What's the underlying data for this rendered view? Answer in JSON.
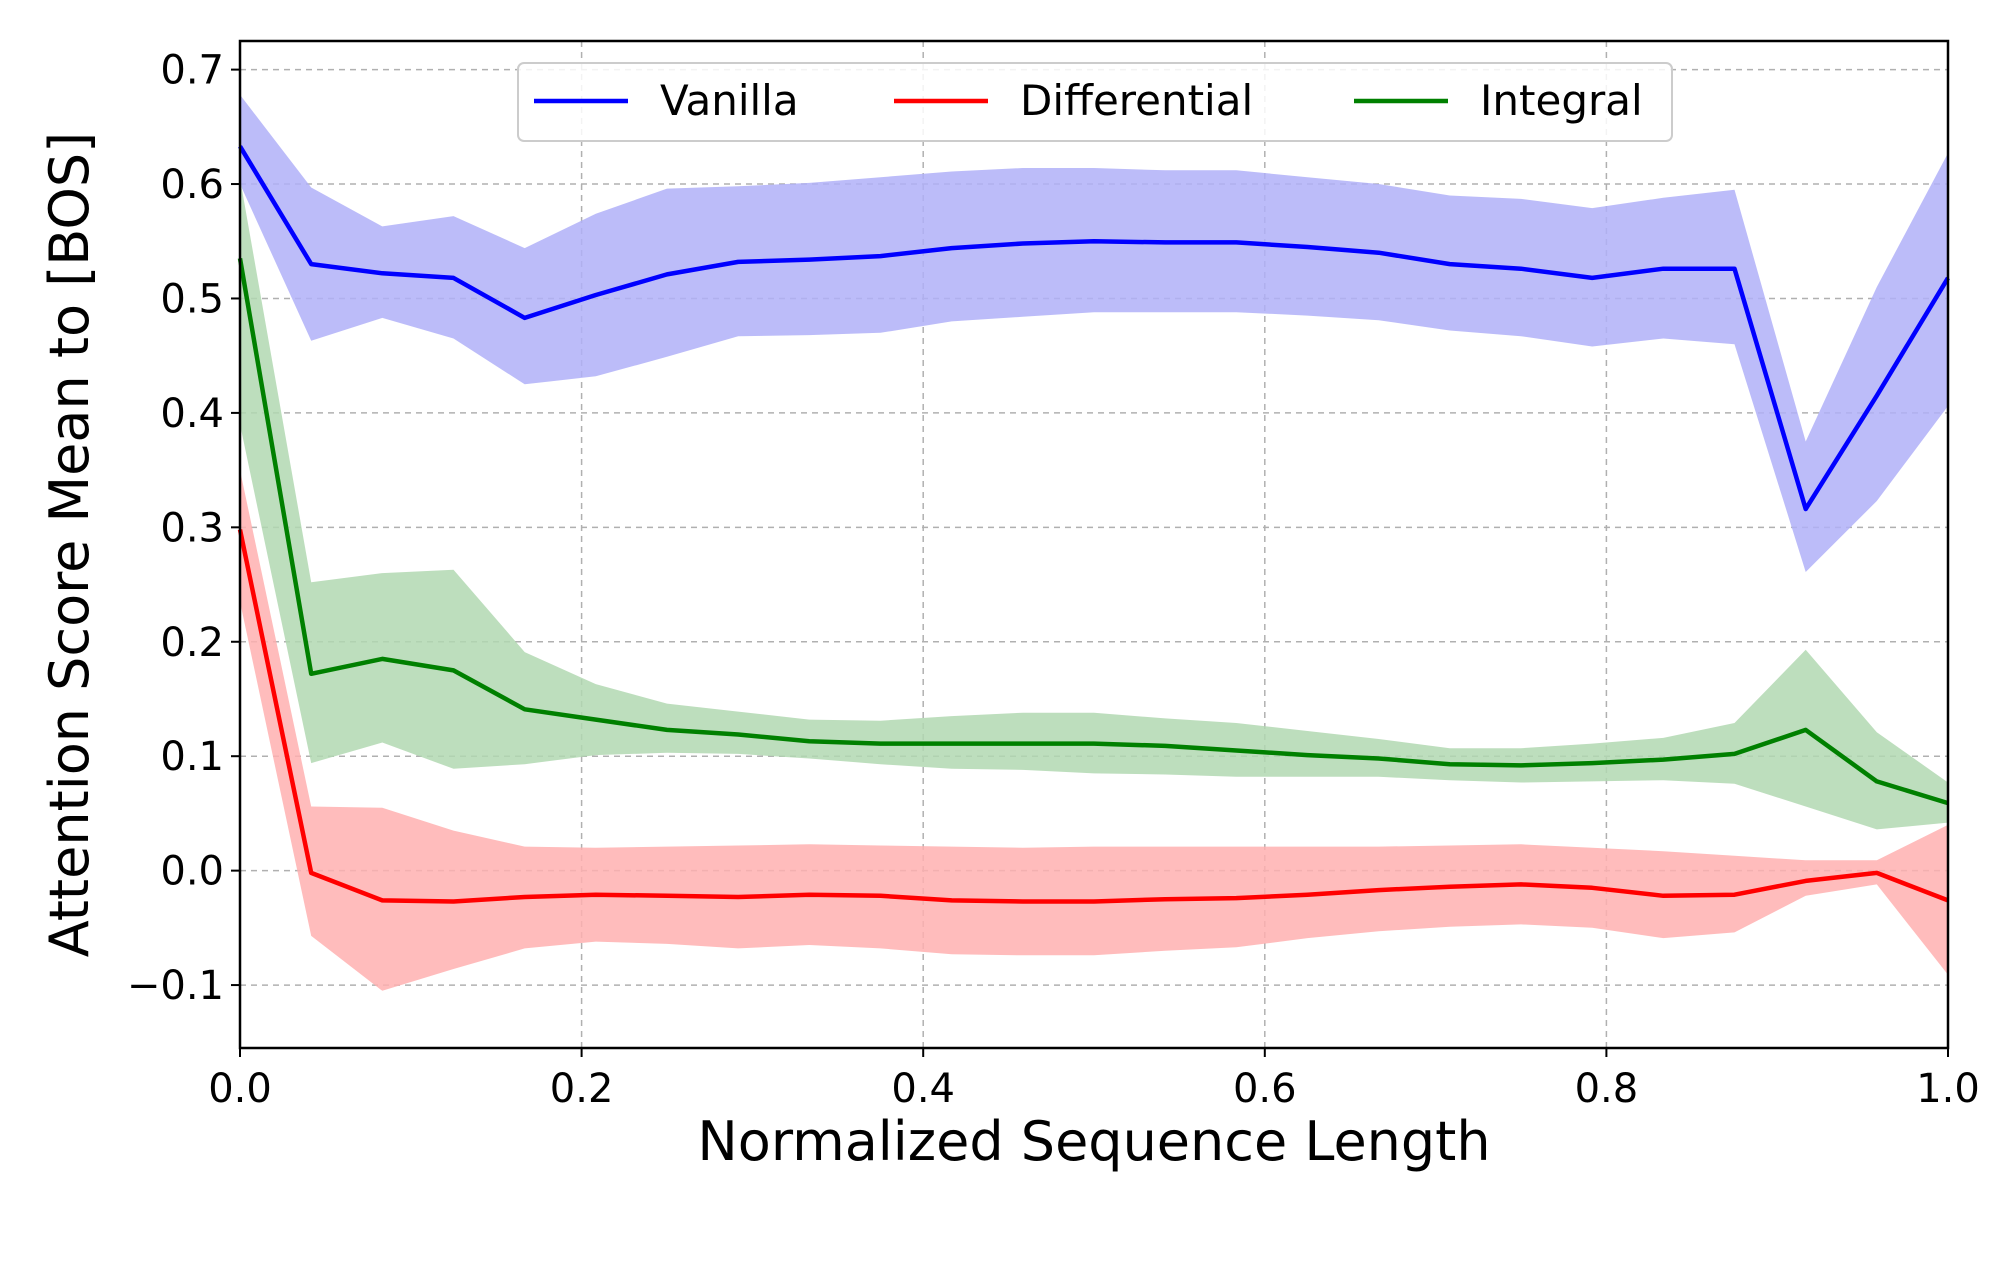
{
  "chart_data": {
    "type": "line",
    "xlabel": "Normalized Sequence Length",
    "ylabel": "Attention Score Mean to [BOS]",
    "xlim": [
      0,
      1
    ],
    "ylim": [
      -0.155,
      0.725
    ],
    "x_ticks": [
      0.0,
      0.2,
      0.4,
      0.6,
      0.8,
      1.0
    ],
    "x_tick_labels": [
      "0.0",
      "0.2",
      "0.4",
      "0.6",
      "0.8",
      "1.0"
    ],
    "y_ticks": [
      -0.1,
      0.0,
      0.1,
      0.2,
      0.3,
      0.4,
      0.5,
      0.6,
      0.7
    ],
    "y_tick_labels": [
      "−0.1",
      "0.0",
      "0.1",
      "0.2",
      "0.3",
      "0.4",
      "0.5",
      "0.6",
      "0.7"
    ],
    "grid": true,
    "legend_position": "top-center",
    "x": [
      0.0,
      0.0417,
      0.0833,
      0.125,
      0.1667,
      0.2083,
      0.25,
      0.2917,
      0.3333,
      0.375,
      0.4167,
      0.4583,
      0.5,
      0.5417,
      0.5833,
      0.625,
      0.6667,
      0.7083,
      0.75,
      0.7917,
      0.8333,
      0.875,
      0.9167,
      0.9583,
      1.0
    ],
    "series": [
      {
        "name": "Vanilla",
        "color": "#0000ff",
        "band_color": "#b0b0f8",
        "values": [
          0.633,
          0.53,
          0.522,
          0.518,
          0.483,
          0.503,
          0.521,
          0.532,
          0.534,
          0.537,
          0.544,
          0.548,
          0.55,
          0.549,
          0.549,
          0.545,
          0.54,
          0.53,
          0.526,
          0.518,
          0.526,
          0.526,
          0.316,
          0.415,
          0.518
        ],
        "upper": [
          0.678,
          0.597,
          0.563,
          0.572,
          0.544,
          0.574,
          0.596,
          0.598,
          0.601,
          0.606,
          0.611,
          0.614,
          0.614,
          0.612,
          0.612,
          0.606,
          0.6,
          0.59,
          0.587,
          0.579,
          0.588,
          0.595,
          0.375,
          0.51,
          0.627
        ],
        "lower": [
          0.6,
          0.463,
          0.483,
          0.465,
          0.425,
          0.432,
          0.449,
          0.467,
          0.468,
          0.47,
          0.48,
          0.484,
          0.488,
          0.488,
          0.488,
          0.485,
          0.481,
          0.472,
          0.467,
          0.458,
          0.465,
          0.46,
          0.261,
          0.323,
          0.406
        ]
      },
      {
        "name": "Differential",
        "color": "#ff0000",
        "band_color": "#ffb0b0",
        "values": [
          0.298,
          -0.002,
          -0.026,
          -0.027,
          -0.023,
          -0.021,
          -0.022,
          -0.023,
          -0.021,
          -0.022,
          -0.026,
          -0.027,
          -0.027,
          -0.025,
          -0.024,
          -0.021,
          -0.017,
          -0.014,
          -0.012,
          -0.015,
          -0.022,
          -0.021,
          -0.009,
          -0.002,
          -0.026
        ],
        "upper": [
          0.35,
          0.056,
          0.055,
          0.035,
          0.021,
          0.02,
          0.021,
          0.022,
          0.023,
          0.022,
          0.021,
          0.02,
          0.021,
          0.021,
          0.021,
          0.021,
          0.021,
          0.022,
          0.023,
          0.02,
          0.017,
          0.013,
          0.009,
          0.009,
          0.04
        ],
        "lower": [
          0.235,
          -0.057,
          -0.105,
          -0.086,
          -0.068,
          -0.062,
          -0.064,
          -0.068,
          -0.065,
          -0.068,
          -0.073,
          -0.074,
          -0.074,
          -0.07,
          -0.067,
          -0.059,
          -0.053,
          -0.049,
          -0.047,
          -0.05,
          -0.059,
          -0.054,
          -0.022,
          -0.012,
          -0.091
        ]
      },
      {
        "name": "Integral",
        "color": "#008000",
        "band_color": "#b2d8b2",
        "values": [
          0.535,
          0.172,
          0.185,
          0.175,
          0.141,
          0.132,
          0.123,
          0.119,
          0.113,
          0.111,
          0.111,
          0.111,
          0.111,
          0.109,
          0.105,
          0.101,
          0.098,
          0.093,
          0.092,
          0.094,
          0.097,
          0.102,
          0.123,
          0.078,
          0.059
        ],
        "upper": [
          0.605,
          0.252,
          0.26,
          0.263,
          0.191,
          0.163,
          0.146,
          0.139,
          0.132,
          0.131,
          0.135,
          0.138,
          0.138,
          0.133,
          0.129,
          0.122,
          0.115,
          0.107,
          0.107,
          0.111,
          0.116,
          0.129,
          0.193,
          0.121,
          0.077
        ],
        "lower": [
          0.39,
          0.094,
          0.112,
          0.089,
          0.093,
          0.101,
          0.103,
          0.102,
          0.098,
          0.093,
          0.089,
          0.088,
          0.085,
          0.084,
          0.082,
          0.082,
          0.082,
          0.079,
          0.077,
          0.078,
          0.079,
          0.076,
          0.056,
          0.036,
          0.042
        ]
      }
    ]
  }
}
